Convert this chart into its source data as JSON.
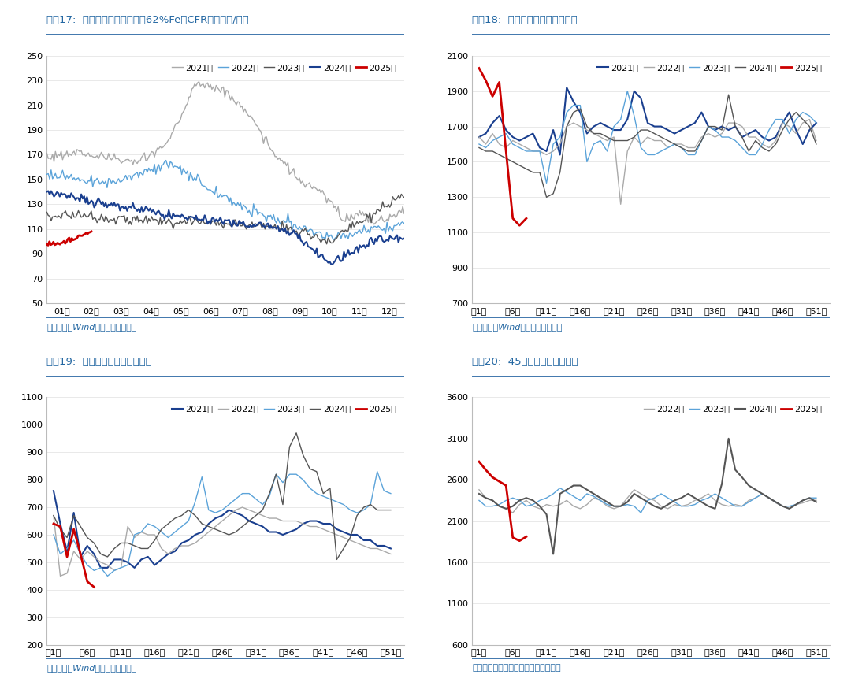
{
  "chart17": {
    "title": "图表17:  普氏铁矿石价格指数（62%Fe，CFR）（美元/吨）",
    "ylim": [
      50,
      250
    ],
    "yticks": [
      50,
      70,
      90,
      110,
      130,
      150,
      170,
      190,
      210,
      230,
      250
    ],
    "xtick_labels": [
      "01月",
      "02月",
      "03月",
      "04月",
      "05月",
      "06月",
      "07月",
      "08月",
      "09月",
      "10月",
      "11月",
      "12月"
    ],
    "source": "资料来源：Wind，国盛证券研究所",
    "legend_labels": [
      "2021年",
      "2022年",
      "2023年",
      "2024年",
      "2025年"
    ],
    "colors": [
      "#aaaaaa",
      "#5ba3d9",
      "#555555",
      "#1a3f8f",
      "#cc0000"
    ],
    "linewidths": [
      1.0,
      1.0,
      1.0,
      1.5,
      2.0
    ]
  },
  "chart18": {
    "title": "图表18:  澳洲周度发货量（万吨）",
    "ylim": [
      700,
      2100
    ],
    "yticks": [
      700,
      900,
      1100,
      1300,
      1500,
      1700,
      1900,
      2100
    ],
    "xtick_positions": [
      1,
      6,
      11,
      16,
      21,
      26,
      31,
      36,
      41,
      46,
      51
    ],
    "xtick_labels": [
      "第1周",
      "第6周",
      "第11周",
      "第16周",
      "第21周",
      "第26周",
      "第31周",
      "第36周",
      "第41周",
      "第46周",
      "第51周"
    ],
    "source": "资料来源：Wind，国盛证券研究所",
    "legend_labels": [
      "2021年",
      "2022年",
      "2023年",
      "2024年",
      "2025年"
    ],
    "colors": [
      "#1a3f8f",
      "#aaaaaa",
      "#5ba3d9",
      "#555555",
      "#cc0000"
    ],
    "linewidths": [
      1.5,
      1.0,
      1.0,
      1.0,
      2.0
    ],
    "data_2021": [
      1640,
      1660,
      1720,
      1760,
      1680,
      1640,
      1620,
      1640,
      1660,
      1580,
      1560,
      1680,
      1540,
      1920,
      1840,
      1780,
      1660,
      1700,
      1720,
      1700,
      1680,
      1680,
      1740,
      1900,
      1860,
      1720,
      1700,
      1700,
      1680,
      1660,
      1680,
      1700,
      1720,
      1780,
      1700,
      1680,
      1700,
      1680,
      1700,
      1640,
      1660,
      1680,
      1640,
      1620,
      1640,
      1720,
      1780,
      1680,
      1600,
      1680,
      1720
    ],
    "data_2022": [
      1640,
      1600,
      1660,
      1600,
      1580,
      1620,
      1600,
      1580,
      1560,
      1560,
      1540,
      1560,
      1600,
      1700,
      1720,
      1700,
      1680,
      1660,
      1640,
      1620,
      1640,
      1260,
      1560,
      1640,
      1600,
      1640,
      1620,
      1620,
      1580,
      1600,
      1600,
      1580,
      1580,
      1640,
      1660,
      1640,
      1660,
      1720,
      1720,
      1700,
      1640,
      1640,
      1600,
      1580,
      1620,
      1720,
      1700,
      1660,
      1720,
      1740,
      1620
    ],
    "data_2023": [
      1600,
      1580,
      1620,
      1640,
      1660,
      1600,
      1580,
      1560,
      1560,
      1560,
      1380,
      1600,
      1640,
      1780,
      1820,
      1820,
      1500,
      1600,
      1620,
      1560,
      1700,
      1740,
      1900,
      1760,
      1580,
      1540,
      1540,
      1560,
      1580,
      1600,
      1580,
      1540,
      1540,
      1620,
      1700,
      1680,
      1640,
      1640,
      1620,
      1580,
      1540,
      1540,
      1600,
      1680,
      1740,
      1740,
      1660,
      1740,
      1780,
      1760,
      1720
    ],
    "data_2024": [
      1580,
      1560,
      1560,
      1540,
      1520,
      1500,
      1480,
      1460,
      1440,
      1440,
      1300,
      1320,
      1440,
      1700,
      1780,
      1800,
      1700,
      1660,
      1660,
      1640,
      1620,
      1620,
      1620,
      1640,
      1680,
      1680,
      1660,
      1640,
      1620,
      1600,
      1580,
      1560,
      1560,
      1620,
      1700,
      1700,
      1680,
      1880,
      1700,
      1640,
      1560,
      1620,
      1580,
      1560,
      1600,
      1680,
      1740,
      1780,
      1740,
      1700,
      1600
    ],
    "data_2025": [
      2030,
      1960,
      1870,
      1950,
      1560,
      1180,
      1140,
      1180
    ]
  },
  "chart19": {
    "title": "图表19:  巴西周度发货量（万吨）",
    "ylim": [
      200,
      1100
    ],
    "yticks": [
      200,
      300,
      400,
      500,
      600,
      700,
      800,
      900,
      1000,
      1100
    ],
    "xtick_positions": [
      1,
      6,
      11,
      16,
      21,
      26,
      31,
      36,
      41,
      46,
      51
    ],
    "xtick_labels": [
      "第1周",
      "第6周",
      "第11周",
      "第16周",
      "第21周",
      "第26周",
      "第31周",
      "第36周",
      "第41周",
      "第46周",
      "第51周"
    ],
    "source": "资料来源：Wind，国盛证券研究所",
    "legend_labels": [
      "2021年",
      "2022年",
      "2023年",
      "2024年",
      "2025年"
    ],
    "colors": [
      "#1a3f8f",
      "#aaaaaa",
      "#5ba3d9",
      "#555555",
      "#cc0000"
    ],
    "linewidths": [
      1.5,
      1.0,
      1.0,
      1.0,
      2.0
    ],
    "data_2021": [
      760,
      640,
      540,
      680,
      520,
      560,
      530,
      480,
      480,
      510,
      510,
      500,
      480,
      510,
      520,
      490,
      510,
      530,
      540,
      570,
      580,
      600,
      610,
      640,
      660,
      670,
      690,
      680,
      670,
      650,
      640,
      630,
      610,
      610,
      600,
      610,
      620,
      640,
      650,
      650,
      640,
      640,
      620,
      610,
      600,
      600,
      580,
      580,
      560,
      560,
      550
    ],
    "data_2022": [
      670,
      450,
      460,
      540,
      510,
      540,
      520,
      500,
      490,
      470,
      480,
      630,
      590,
      610,
      600,
      600,
      550,
      530,
      550,
      560,
      560,
      570,
      590,
      610,
      630,
      650,
      670,
      690,
      700,
      690,
      680,
      670,
      660,
      660,
      650,
      650,
      650,
      640,
      630,
      630,
      620,
      610,
      600,
      590,
      580,
      570,
      560,
      550,
      550,
      540,
      530
    ],
    "data_2023": [
      600,
      530,
      550,
      580,
      530,
      490,
      470,
      480,
      450,
      470,
      480,
      490,
      600,
      610,
      640,
      630,
      610,
      590,
      610,
      630,
      650,
      720,
      810,
      690,
      680,
      690,
      710,
      730,
      750,
      750,
      730,
      710,
      740,
      820,
      790,
      820,
      820,
      800,
      770,
      750,
      740,
      730,
      720,
      710,
      690,
      680,
      690,
      710,
      830,
      760,
      750
    ],
    "data_2024": [
      670,
      620,
      590,
      670,
      630,
      590,
      570,
      530,
      520,
      550,
      570,
      570,
      560,
      550,
      550,
      580,
      620,
      640,
      660,
      670,
      690,
      670,
      640,
      630,
      620,
      610,
      600,
      610,
      630,
      650,
      670,
      690,
      750,
      820,
      710,
      920,
      970,
      890,
      840,
      830,
      750,
      770,
      510,
      550,
      590,
      670,
      700,
      710,
      690,
      690,
      690
    ],
    "data_2025": [
      640,
      630,
      520,
      620,
      530,
      430,
      410
    ]
  },
  "chart20": {
    "title": "图表20:  45港口到港量（万吨）",
    "ylim": [
      600,
      3600
    ],
    "yticks": [
      600,
      1100,
      1600,
      2100,
      2600,
      3100,
      3600
    ],
    "xtick_positions": [
      1,
      6,
      11,
      16,
      21,
      26,
      31,
      36,
      41,
      46,
      51
    ],
    "xtick_labels": [
      "第1周",
      "第6周",
      "第11周",
      "第16周",
      "第21周",
      "第26周",
      "第31周",
      "第36周",
      "第41周",
      "第46周",
      "第51周"
    ],
    "source": "资料来源：钢联数据，国盛证券研究所",
    "legend_labels": [
      "2022年",
      "2023年",
      "2024年",
      "2025年"
    ],
    "colors": [
      "#aaaaaa",
      "#5ba3d9",
      "#555555",
      "#cc0000"
    ],
    "linewidths": [
      1.0,
      1.0,
      1.5,
      2.0
    ],
    "data_2022": [
      2480,
      2380,
      2350,
      2280,
      2250,
      2200,
      2300,
      2350,
      2280,
      2250,
      2300,
      2280,
      2300,
      2350,
      2280,
      2250,
      2300,
      2380,
      2350,
      2280,
      2250,
      2280,
      2380,
      2480,
      2430,
      2380,
      2350,
      2280,
      2250,
      2300,
      2280,
      2300,
      2350,
      2380,
      2430,
      2350,
      2300,
      2280,
      2300,
      2280,
      2350,
      2380,
      2430,
      2380,
      2320,
      2280,
      2250,
      2300,
      2320,
      2350,
      2350
    ],
    "data_2023": [
      2350,
      2280,
      2280,
      2300,
      2350,
      2380,
      2350,
      2280,
      2300,
      2350,
      2380,
      2430,
      2500,
      2450,
      2400,
      2350,
      2430,
      2400,
      2350,
      2300,
      2280,
      2280,
      2300,
      2280,
      2200,
      2350,
      2380,
      2430,
      2380,
      2330,
      2280,
      2280,
      2300,
      2350,
      2380,
      2430,
      2380,
      2330,
      2280,
      2280,
      2330,
      2380,
      2430,
      2380,
      2330,
      2280,
      2280,
      2300,
      2350,
      2380,
      2380
    ],
    "data_2024": [
      2430,
      2380,
      2350,
      2280,
      2250,
      2280,
      2350,
      2380,
      2350,
      2280,
      2180,
      1700,
      2430,
      2480,
      2530,
      2530,
      2480,
      2430,
      2380,
      2330,
      2280,
      2280,
      2330,
      2430,
      2380,
      2330,
      2280,
      2250,
      2300,
      2350,
      2380,
      2430,
      2380,
      2330,
      2280,
      2250,
      2550,
      3100,
      2720,
      2630,
      2530,
      2480,
      2430,
      2380,
      2330,
      2280,
      2250,
      2300,
      2350,
      2380,
      2330
    ],
    "data_2025": [
      2820,
      2720,
      2630,
      2580,
      2530,
      1900,
      1860,
      1910
    ]
  },
  "layout": {
    "bg_color": "#ffffff",
    "title_color": "#2367a2",
    "source_color": "#2367a2",
    "title_fontsize": 9.5,
    "axis_fontsize": 8,
    "legend_fontsize": 8,
    "source_fontsize": 8
  }
}
